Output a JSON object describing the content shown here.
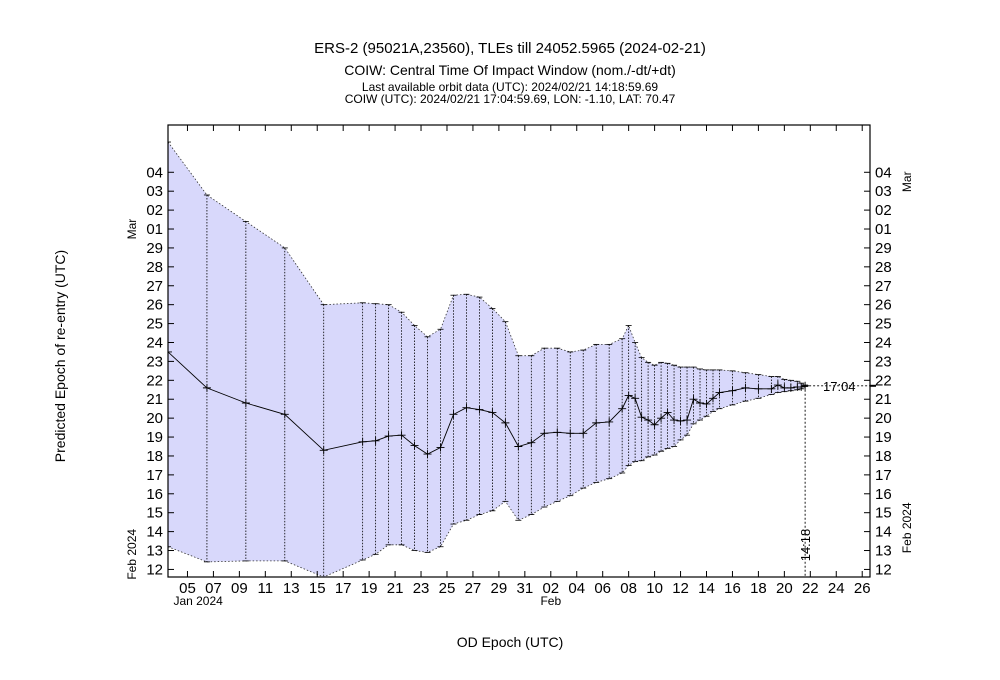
{
  "chart_data": {
    "type": "line",
    "title": "ERS-2 (95021A,23560), TLEs till 24052.5965 (2024-02-21)",
    "subtitle": "COIW: Central Time Of Impact Window (nom./-dt/+dt)",
    "info_line_1": "Last available orbit data (UTC): 2024/02/21 14:18:59.69",
    "info_line_2": "COIW (UTC): 2024/02/21 17:04:59.69, LON: -1.10, LAT: 70.47",
    "xlabel": "OD Epoch (UTC)",
    "ylabel": "Predicted Epoch of re-entry (UTC)",
    "x_axis": {
      "range_days": [
        3.5,
        57.6
      ],
      "tick_labels": [
        "05",
        "07",
        "09",
        "11",
        "13",
        "15",
        "17",
        "19",
        "21",
        "23",
        "25",
        "27",
        "29",
        "31",
        "02",
        "04",
        "06",
        "08",
        "10",
        "12",
        "14",
        "16",
        "18",
        "20",
        "22",
        "24",
        "26"
      ],
      "tick_days": [
        5,
        7,
        9,
        11,
        13,
        15,
        17,
        19,
        21,
        23,
        25,
        27,
        29,
        31,
        33,
        35,
        37,
        39,
        41,
        43,
        45,
        47,
        49,
        51,
        53,
        55,
        57
      ],
      "month_labels": [
        {
          "text": "Jan 2024",
          "day": 5
        },
        {
          "text": "Feb",
          "day": 33
        }
      ]
    },
    "y_axis": {
      "range_days": [
        11.6,
        35.5
      ],
      "tick_labels": [
        "12",
        "13",
        "14",
        "15",
        "16",
        "17",
        "18",
        "19",
        "20",
        "21",
        "22",
        "23",
        "24",
        "25",
        "26",
        "27",
        "28",
        "29",
        "01",
        "02",
        "03",
        "04"
      ],
      "tick_days": [
        12,
        13,
        14,
        15,
        16,
        17,
        18,
        19,
        20,
        21,
        22,
        23,
        24,
        25,
        26,
        27,
        28,
        29,
        30,
        31,
        32,
        33
      ],
      "left_month_labels": [
        {
          "text": "Feb 2024",
          "day": 12.8
        },
        {
          "text": "Mar",
          "day": 30
        }
      ],
      "right_month_labels": [
        {
          "text": "Feb 2024",
          "day": 14.2
        },
        {
          "text": "Mar",
          "day": 32.5
        }
      ]
    },
    "series": {
      "od_epochs": [
        3.5,
        6.5,
        9.5,
        12.5,
        15.5,
        18.5,
        19.5,
        20.5,
        21.5,
        22.5,
        23.5,
        24.5,
        25.5,
        26.5,
        27.5,
        28.5,
        29.5,
        30.5,
        31.5,
        32.5,
        33.5,
        34.5,
        35.5,
        36.5,
        37.5,
        38.5,
        39.0,
        39.5,
        40.0,
        40.5,
        41.0,
        41.5,
        42.0,
        42.5,
        43.0,
        43.5,
        44.0,
        44.5,
        45.0,
        45.5,
        46.0,
        47.0,
        48.0,
        49.0,
        50.0,
        50.5,
        51.0,
        51.5,
        52.0,
        52.3,
        52.6
      ],
      "nominal": [
        23.5,
        21.6,
        20.8,
        20.2,
        18.3,
        18.75,
        18.8,
        19.05,
        19.1,
        18.55,
        18.1,
        18.45,
        20.2,
        20.55,
        20.45,
        20.3,
        19.75,
        18.5,
        18.7,
        19.2,
        19.25,
        19.2,
        19.2,
        19.75,
        19.8,
        20.5,
        21.2,
        21.05,
        20.05,
        19.9,
        19.65,
        20.0,
        20.3,
        19.9,
        19.85,
        19.9,
        21.0,
        20.8,
        20.75,
        21.05,
        21.35,
        21.45,
        21.6,
        21.55,
        21.55,
        21.75,
        21.6,
        21.6,
        21.65,
        21.65,
        21.71
      ],
      "upper": [
        34.6,
        31.8,
        30.4,
        29.0,
        26.0,
        26.1,
        26.05,
        26.0,
        25.6,
        24.9,
        24.3,
        24.7,
        26.5,
        26.55,
        26.4,
        25.8,
        25.1,
        23.3,
        23.3,
        23.7,
        23.7,
        23.5,
        23.6,
        23.9,
        23.9,
        24.2,
        24.9,
        24.0,
        23.2,
        22.95,
        22.8,
        22.95,
        22.9,
        22.8,
        22.7,
        22.7,
        22.7,
        22.6,
        22.55,
        22.55,
        22.55,
        22.5,
        22.4,
        22.3,
        22.2,
        22.2,
        22.05,
        22.0,
        21.95,
        21.85,
        21.75
      ],
      "lower": [
        13.2,
        12.4,
        12.45,
        12.45,
        11.6,
        12.5,
        12.8,
        13.3,
        13.3,
        13.0,
        12.9,
        13.2,
        14.4,
        14.6,
        14.9,
        15.1,
        15.6,
        14.6,
        14.9,
        15.3,
        15.6,
        15.9,
        16.3,
        16.6,
        16.8,
        17.1,
        17.5,
        17.7,
        17.75,
        17.95,
        18.05,
        18.25,
        18.4,
        18.5,
        18.85,
        19.1,
        19.7,
        19.9,
        20.1,
        20.35,
        20.5,
        20.7,
        20.9,
        21.05,
        21.25,
        21.35,
        21.4,
        21.45,
        21.5,
        21.55,
        21.67
      ]
    },
    "last_orbit_marker": {
      "day": 52.6,
      "label": "14:18"
    },
    "coiw_marker": {
      "day": 52.71,
      "label": "17:04"
    },
    "colors": {
      "band": "#d8d8fb",
      "line": "#000000"
    }
  }
}
